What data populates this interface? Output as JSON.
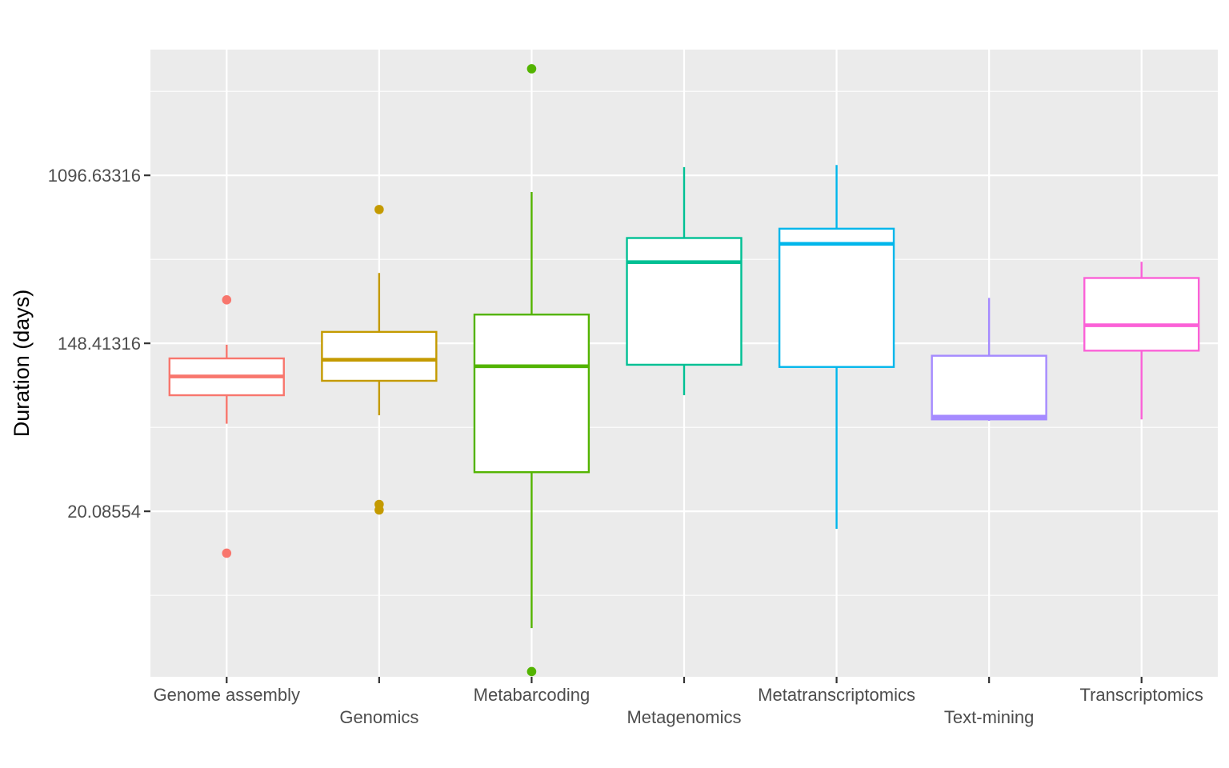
{
  "chart_data": {
    "type": "boxplot",
    "title": "",
    "xlabel": "",
    "ylabel": "Duration (days)",
    "y_scale": "log",
    "ylim": [
      2.8,
      4900
    ],
    "y_ticks": [
      20.08554,
      148.41316,
      1096.63316
    ],
    "y_tick_labels": [
      "20.08554",
      "148.41316",
      "1096.63316"
    ],
    "grid": true,
    "background_color": "#ebebeb",
    "grid_color": "#ffffff",
    "categories": [
      {
        "name": "Genome assembly",
        "color": "#f8766d",
        "whisker_low": 57,
        "q1": 80,
        "median": 100,
        "q3": 124,
        "whisker_high": 146,
        "outliers": [
          249,
          12.2
        ]
      },
      {
        "name": "Genomics",
        "color": "#c49a00",
        "whisker_low": 63,
        "q1": 95,
        "median": 122,
        "q3": 170,
        "whisker_high": 343,
        "outliers": [
          730,
          21.8,
          20.4
        ]
      },
      {
        "name": "Metabarcoding",
        "color": "#53b400",
        "whisker_low": 5.0,
        "q1": 32,
        "median": 113,
        "q3": 209,
        "whisker_high": 899,
        "outliers": [
          3900,
          2.98
        ]
      },
      {
        "name": "Metagenomics",
        "color": "#00c094",
        "whisker_low": 80,
        "q1": 115,
        "median": 390,
        "q3": 520,
        "whisker_high": 1209,
        "outliers": []
      },
      {
        "name": "Metatranscriptomics",
        "color": "#00b6eb",
        "whisker_low": 16.3,
        "q1": 112,
        "median": 485,
        "q3": 581,
        "whisker_high": 1240,
        "outliers": []
      },
      {
        "name": "Text-mining",
        "color": "#a58aff",
        "whisker_low": 59,
        "q1": 60,
        "median": 62,
        "q3": 128,
        "whisker_high": 255,
        "outliers": []
      },
      {
        "name": "Transcriptomics",
        "color": "#fb61d7",
        "whisker_low": 60,
        "q1": 136,
        "median": 184,
        "q3": 323,
        "whisker_high": 392,
        "outliers": []
      }
    ]
  }
}
